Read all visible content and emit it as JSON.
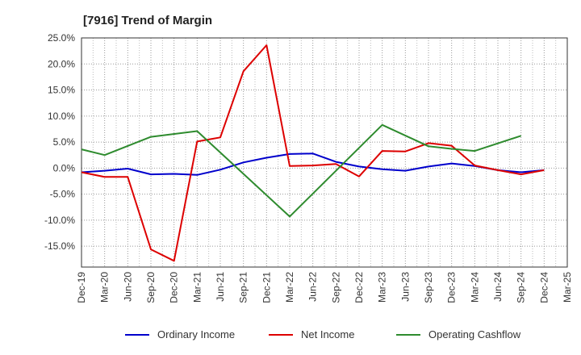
{
  "chart_data": {
    "type": "line",
    "title": "[7916]  Trend of Margin",
    "xlabel": "",
    "ylabel": "",
    "categories": [
      "Dec-19",
      "Mar-20",
      "Jun-20",
      "Sep-20",
      "Dec-20",
      "Mar-21",
      "Jun-21",
      "Sep-21",
      "Dec-21",
      "Mar-22",
      "Jun-22",
      "Sep-22",
      "Dec-22",
      "Mar-23",
      "Jun-23",
      "Sep-23",
      "Dec-23",
      "Mar-24",
      "Jun-24",
      "Sep-24",
      "Dec-24",
      "Mar-25"
    ],
    "y_ticks": [
      "25.0%",
      "20.0%",
      "15.0%",
      "10.0%",
      "5.0%",
      "0.0%",
      "-5.0%",
      "-10.0%",
      "-15.0%"
    ],
    "y_tick_values": [
      25,
      20,
      15,
      10,
      5,
      0,
      -5,
      -10,
      -15
    ],
    "ylim": [
      -19,
      25
    ],
    "grid": true,
    "legend_position": "bottom",
    "series": [
      {
        "name": "Ordinary Income",
        "color": "#0000cc",
        "values": [
          -0.8,
          -0.5,
          -0.1,
          -1.2,
          -1.1,
          -1.3,
          -0.3,
          1.1,
          2.0,
          2.7,
          2.8,
          1.2,
          0.3,
          -0.2,
          -0.5,
          0.3,
          0.9,
          0.4,
          -0.4,
          -0.8,
          -0.4,
          null
        ]
      },
      {
        "name": "Net Income",
        "color": "#dd0000",
        "values": [
          -0.8,
          -1.7,
          -1.7,
          -15.6,
          -17.8,
          5.1,
          5.9,
          18.6,
          23.6,
          0.4,
          0.5,
          0.8,
          -1.6,
          3.3,
          3.2,
          4.8,
          4.3,
          0.5,
          -0.4,
          -1.2,
          -0.4,
          null
        ]
      },
      {
        "name": "Operating Cashflow",
        "color": "#2e8b2e",
        "values": [
          3.6,
          2.5,
          null,
          6.0,
          null,
          7.1,
          null,
          null,
          null,
          -9.3,
          null,
          null,
          null,
          8.3,
          null,
          4.2,
          3.7,
          3.3,
          null,
          6.2,
          null,
          null
        ]
      }
    ]
  }
}
